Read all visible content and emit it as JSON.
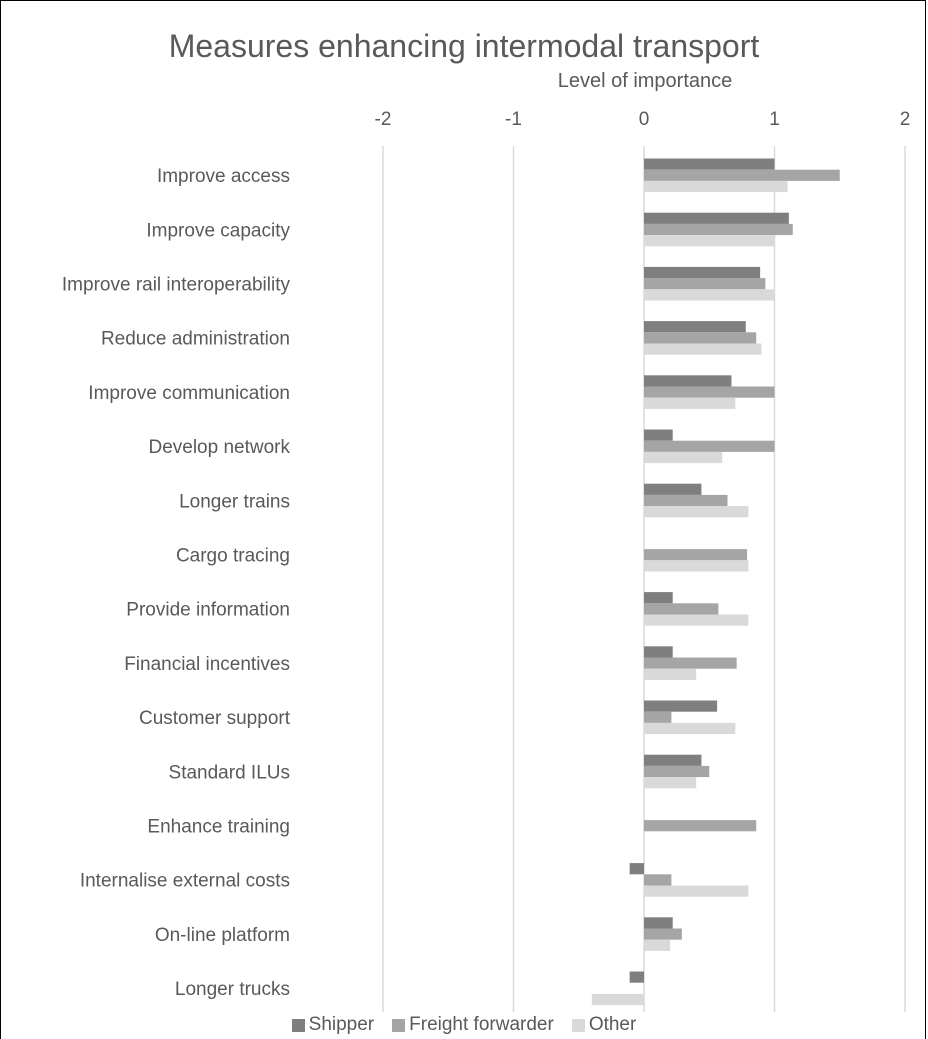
{
  "chart_data": {
    "type": "bar",
    "orientation": "horizontal",
    "title": "Measures enhancing intermodal transport",
    "xlabel": "Level of importance",
    "ylabel": "",
    "xlim": [
      -2,
      2
    ],
    "x_ticks": [
      "-2",
      "-1",
      "0",
      "1",
      "2"
    ],
    "grid": "vertical",
    "legend_position": "bottom",
    "categories": [
      "Improve access",
      "Improve capacity",
      "Improve rail interoperability",
      "Reduce administration",
      "Improve communication",
      "Develop network",
      "Longer trains",
      "Cargo tracing",
      "Provide information",
      "Financial incentives",
      "Customer support",
      "Standard ILUs",
      "Enhance training",
      "Internalise external costs",
      "On-line platform",
      "Longer trucks"
    ],
    "series": [
      {
        "name": "Shipper",
        "color": "#7f7f7f",
        "values": [
          1.0,
          1.11,
          0.89,
          0.78,
          0.67,
          0.22,
          0.44,
          0,
          0.22,
          0.22,
          0.56,
          0.44,
          0,
          -0.11,
          0.22,
          -0.11
        ]
      },
      {
        "name": "Freight forwarder",
        "color": "#a5a5a5",
        "values": [
          1.5,
          1.14,
          0.93,
          0.86,
          1.0,
          1.0,
          0.64,
          0.79,
          0.57,
          0.71,
          0.21,
          0.5,
          0.86,
          0.21,
          0.29,
          0
        ]
      },
      {
        "name": "Other",
        "color": "#d9d9d9",
        "values": [
          1.1,
          1.0,
          1.0,
          0.9,
          0.7,
          0.6,
          0.8,
          0.8,
          0.8,
          0.4,
          0.7,
          0.4,
          0,
          0.8,
          0.2,
          -0.4
        ]
      }
    ]
  }
}
